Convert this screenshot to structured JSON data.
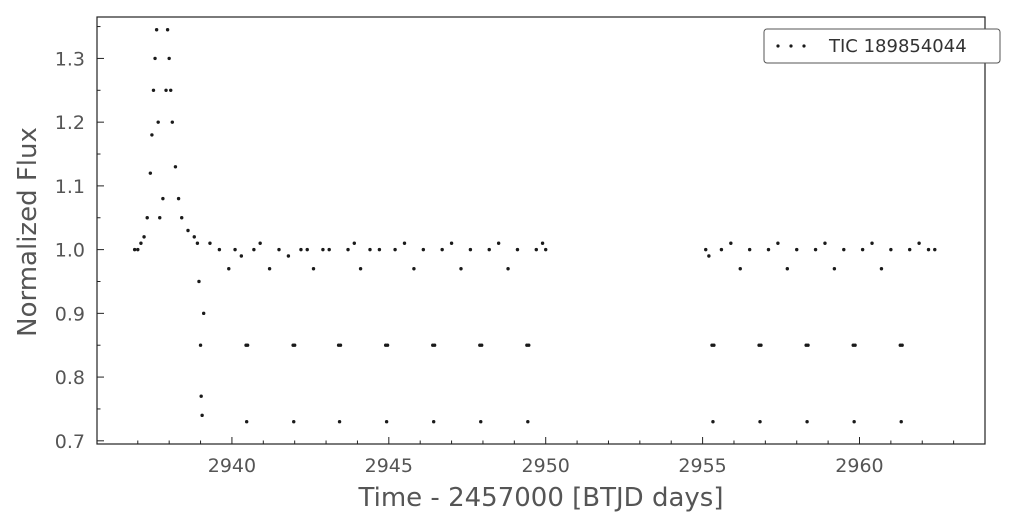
{
  "chart_data": {
    "type": "scatter",
    "title": "",
    "xlabel": "Time - 2457000 [BTJD days]",
    "ylabel": "Normalized Flux",
    "xlim": [
      2935.7,
      2964.0
    ],
    "ylim": [
      0.695,
      1.365
    ],
    "xticks": [
      2940,
      2945,
      2950,
      2955,
      2960
    ],
    "yticks": [
      0.7,
      0.8,
      0.9,
      1.0,
      1.1,
      1.2,
      1.3
    ],
    "xtick_labels": [
      "2940",
      "2945",
      "2950",
      "2955",
      "2960"
    ],
    "ytick_labels": [
      "0.7",
      "0.8",
      "0.9",
      "1.0",
      "1.1",
      "1.2",
      "1.3"
    ],
    "grid": false,
    "legend_position": "top-right",
    "marker_color": "#1a1a1a",
    "series": [
      {
        "name": "TIC 189854044",
        "x": [
          2936.9,
          2937.0,
          2937.1,
          2937.2,
          2937.3,
          2937.4,
          2937.45,
          2937.5,
          2937.55,
          2937.6,
          2937.65,
          2937.7,
          2937.8,
          2937.9,
          2937.95,
          2938.0,
          2938.05,
          2938.1,
          2938.2,
          2938.3,
          2938.4,
          2938.6,
          2938.8,
          2938.9,
          2938.95,
          2939.0,
          2939.02,
          2939.05,
          2939.1,
          2939.3,
          2939.6,
          2939.9,
          2940.1,
          2940.3,
          2940.45,
          2940.47,
          2940.5,
          2940.7,
          2940.9,
          2941.2,
          2941.5,
          2941.8,
          2941.95,
          2941.97,
          2942.0,
          2942.2,
          2942.4,
          2942.6,
          2942.9,
          2943.1,
          2943.4,
          2943.43,
          2943.46,
          2943.7,
          2943.9,
          2944.1,
          2944.4,
          2944.7,
          2944.9,
          2944.93,
          2944.96,
          2945.2,
          2945.5,
          2945.8,
          2946.1,
          2946.4,
          2946.43,
          2946.46,
          2946.7,
          2947.0,
          2947.3,
          2947.6,
          2947.9,
          2947.93,
          2947.96,
          2948.2,
          2948.5,
          2948.8,
          2949.1,
          2949.4,
          2949.43,
          2949.46,
          2949.7,
          2949.9,
          2950.0,
          2955.1,
          2955.2,
          2955.3,
          2955.33,
          2955.36,
          2955.6,
          2955.9,
          2956.2,
          2956.5,
          2956.8,
          2956.83,
          2956.86,
          2957.1,
          2957.4,
          2957.7,
          2958.0,
          2958.3,
          2958.33,
          2958.36,
          2958.6,
          2958.9,
          2959.2,
          2959.5,
          2959.8,
          2959.83,
          2959.86,
          2960.1,
          2960.4,
          2960.7,
          2961.0,
          2961.3,
          2961.33,
          2961.36,
          2961.6,
          2961.9,
          2962.2,
          2962.4
        ],
        "y": [
          1.0,
          1.0,
          1.01,
          1.02,
          1.05,
          1.12,
          1.18,
          1.25,
          1.3,
          1.345,
          1.2,
          1.05,
          1.08,
          1.25,
          1.345,
          1.3,
          1.25,
          1.2,
          1.13,
          1.08,
          1.05,
          1.03,
          1.02,
          1.01,
          0.95,
          0.85,
          0.77,
          0.74,
          0.9,
          1.01,
          1.0,
          0.97,
          1.0,
          0.99,
          0.85,
          0.73,
          0.85,
          1.0,
          1.01,
          0.97,
          1.0,
          0.99,
          0.85,
          0.73,
          0.85,
          1.0,
          1.0,
          0.97,
          1.0,
          1.0,
          0.85,
          0.73,
          0.85,
          1.0,
          1.01,
          0.97,
          1.0,
          1.0,
          0.85,
          0.73,
          0.85,
          1.0,
          1.01,
          0.97,
          1.0,
          0.85,
          0.73,
          0.85,
          1.0,
          1.01,
          0.97,
          1.0,
          0.85,
          0.73,
          0.85,
          1.0,
          1.01,
          0.97,
          1.0,
          0.85,
          0.73,
          0.85,
          1.0,
          1.01,
          1.0,
          1.0,
          0.99,
          0.85,
          0.73,
          0.85,
          1.0,
          1.01,
          0.97,
          1.0,
          0.85,
          0.73,
          0.85,
          1.0,
          1.01,
          0.97,
          1.0,
          0.85,
          0.73,
          0.85,
          1.0,
          1.01,
          0.97,
          1.0,
          0.85,
          0.73,
          0.85,
          1.0,
          1.01,
          0.97,
          1.0,
          0.85,
          0.73,
          0.85,
          1.0,
          1.01,
          1.0,
          1.0
        ]
      }
    ]
  }
}
